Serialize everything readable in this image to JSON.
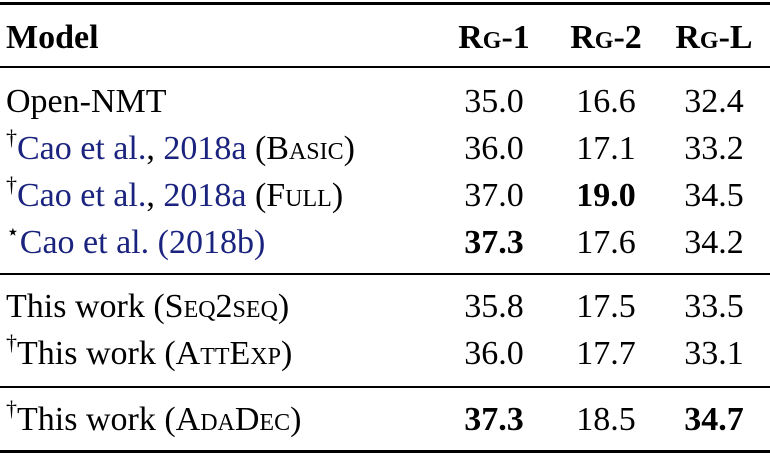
{
  "header": {
    "model": "Model",
    "rg1": "Rg-1",
    "rg2": "Rg-2",
    "rgl": "Rg-L"
  },
  "rows": [
    {
      "mark": "",
      "cite": "",
      "cite_sep": "",
      "cite_year": "",
      "prefix": "Open-NMT",
      "variant": "",
      "suffix": "",
      "rg1": "35.0",
      "rg2": "16.6",
      "rgl": "32.4",
      "bold": []
    },
    {
      "mark": "†",
      "cite": "Cao et al.",
      "cite_sep": ", ",
      "cite_year": "2018a",
      "prefix": "",
      "variant": "Basic",
      "suffix": "",
      "rg1": "36.0",
      "rg2": "17.1",
      "rgl": "33.2",
      "bold": []
    },
    {
      "mark": "†",
      "cite": "Cao et al.",
      "cite_sep": ", ",
      "cite_year": "2018a",
      "prefix": "",
      "variant": "Full",
      "suffix": "",
      "rg1": "37.0",
      "rg2": "19.0",
      "rgl": "34.5",
      "bold": [
        "rg2"
      ]
    },
    {
      "mark": "⋆",
      "cite": "Cao et al.",
      "cite_sep": " ",
      "cite_year": "(2018b)",
      "prefix": "",
      "variant": "",
      "suffix": "",
      "rg1": "37.3",
      "rg2": "17.6",
      "rgl": "34.2",
      "bold": [
        "rg1"
      ]
    },
    {
      "mark": "",
      "cite": "",
      "cite_sep": "",
      "cite_year": "",
      "prefix": "This work",
      "variant": "Seq2seq",
      "suffix": "",
      "rg1": "35.8",
      "rg2": "17.5",
      "rgl": "33.5",
      "bold": []
    },
    {
      "mark": "†",
      "cite": "",
      "cite_sep": "",
      "cite_year": "",
      "prefix": "This work",
      "variant": "AttExp",
      "suffix": "",
      "rg1": "36.0",
      "rg2": "17.7",
      "rgl": "33.1",
      "bold": []
    },
    {
      "mark": "†",
      "cite": "",
      "cite_sep": "",
      "cite_year": "",
      "prefix": "This work",
      "variant": "AdaDec",
      "suffix": "",
      "rg1": "37.3",
      "rg2": "18.5",
      "rgl": "34.7",
      "bold": [
        "rg1",
        "rgl"
      ]
    }
  ],
  "colors": {
    "citation": "#1a237e",
    "text": "#000000"
  }
}
